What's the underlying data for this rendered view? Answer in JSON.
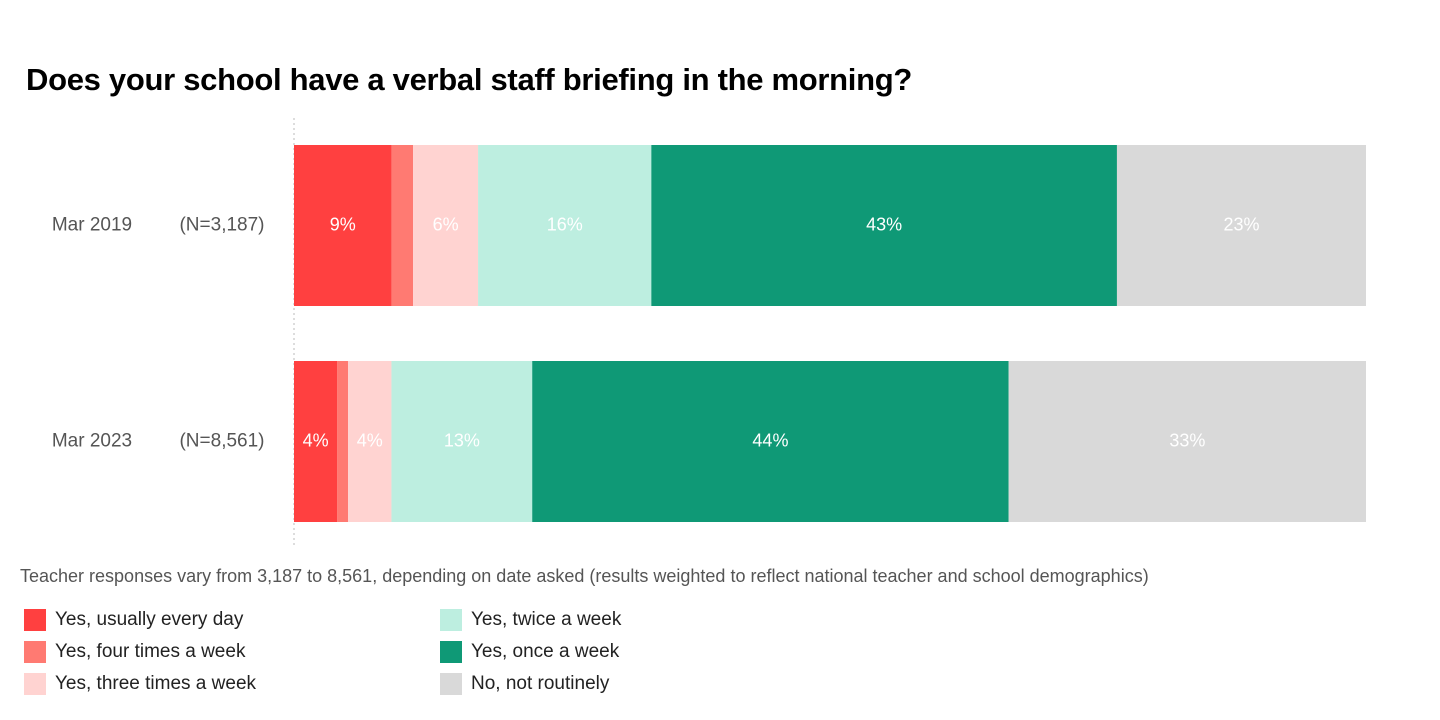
{
  "title": "Does your school have a verbal staff briefing in the morning?",
  "note": "Teacher responses vary from 3,187 to 8,561, depending on date asked (results weighted to reflect national teacher and school demographics)",
  "colors": {
    "every_day": "#ff4040",
    "four_times": "#ff7a72",
    "three_times": "#ffd3d1",
    "twice": "#bdeee0",
    "once": "#0f9976",
    "not_routinely": "#d9d9d9"
  },
  "chart_data": {
    "type": "bar",
    "orientation": "horizontal",
    "stacked": true,
    "percent_scale": true,
    "title": "Does your school have a verbal staff briefing in the morning?",
    "xlim": [
      0,
      100
    ],
    "categories": [
      "Mar 2019",
      "Mar 2023"
    ],
    "sample_sizes": [
      "(N=3,187)",
      "(N=8,561)"
    ],
    "legend_position": "bottom-left",
    "series": [
      {
        "name": "Yes, usually every day",
        "color": "#ff4040",
        "label_color": "#ffffff",
        "values": [
          9,
          4
        ],
        "labels": [
          "9%",
          "4%"
        ]
      },
      {
        "name": "Yes, four times a week",
        "color": "#ff7a72",
        "label_color": "#ffffff",
        "values": [
          2,
          1
        ],
        "labels": [
          "",
          ""
        ]
      },
      {
        "name": "Yes, three times a week",
        "color": "#ffd3d1",
        "label_color": "#ffffff",
        "values": [
          6,
          4
        ],
        "labels": [
          "6%",
          "4%"
        ]
      },
      {
        "name": "Yes, twice a week",
        "color": "#bdeee0",
        "label_color": "#ffffff",
        "values": [
          16,
          13
        ],
        "labels": [
          "16%",
          "13%"
        ]
      },
      {
        "name": "Yes, once a week",
        "color": "#0f9976",
        "label_color": "#ffffff",
        "values": [
          43,
          44
        ],
        "labels": [
          "43%",
          "44%"
        ]
      },
      {
        "name": "No, not routinely",
        "color": "#d9d9d9",
        "label_color": "#ffffff",
        "values": [
          23,
          33
        ],
        "labels": [
          "23%",
          "33%"
        ]
      }
    ]
  }
}
